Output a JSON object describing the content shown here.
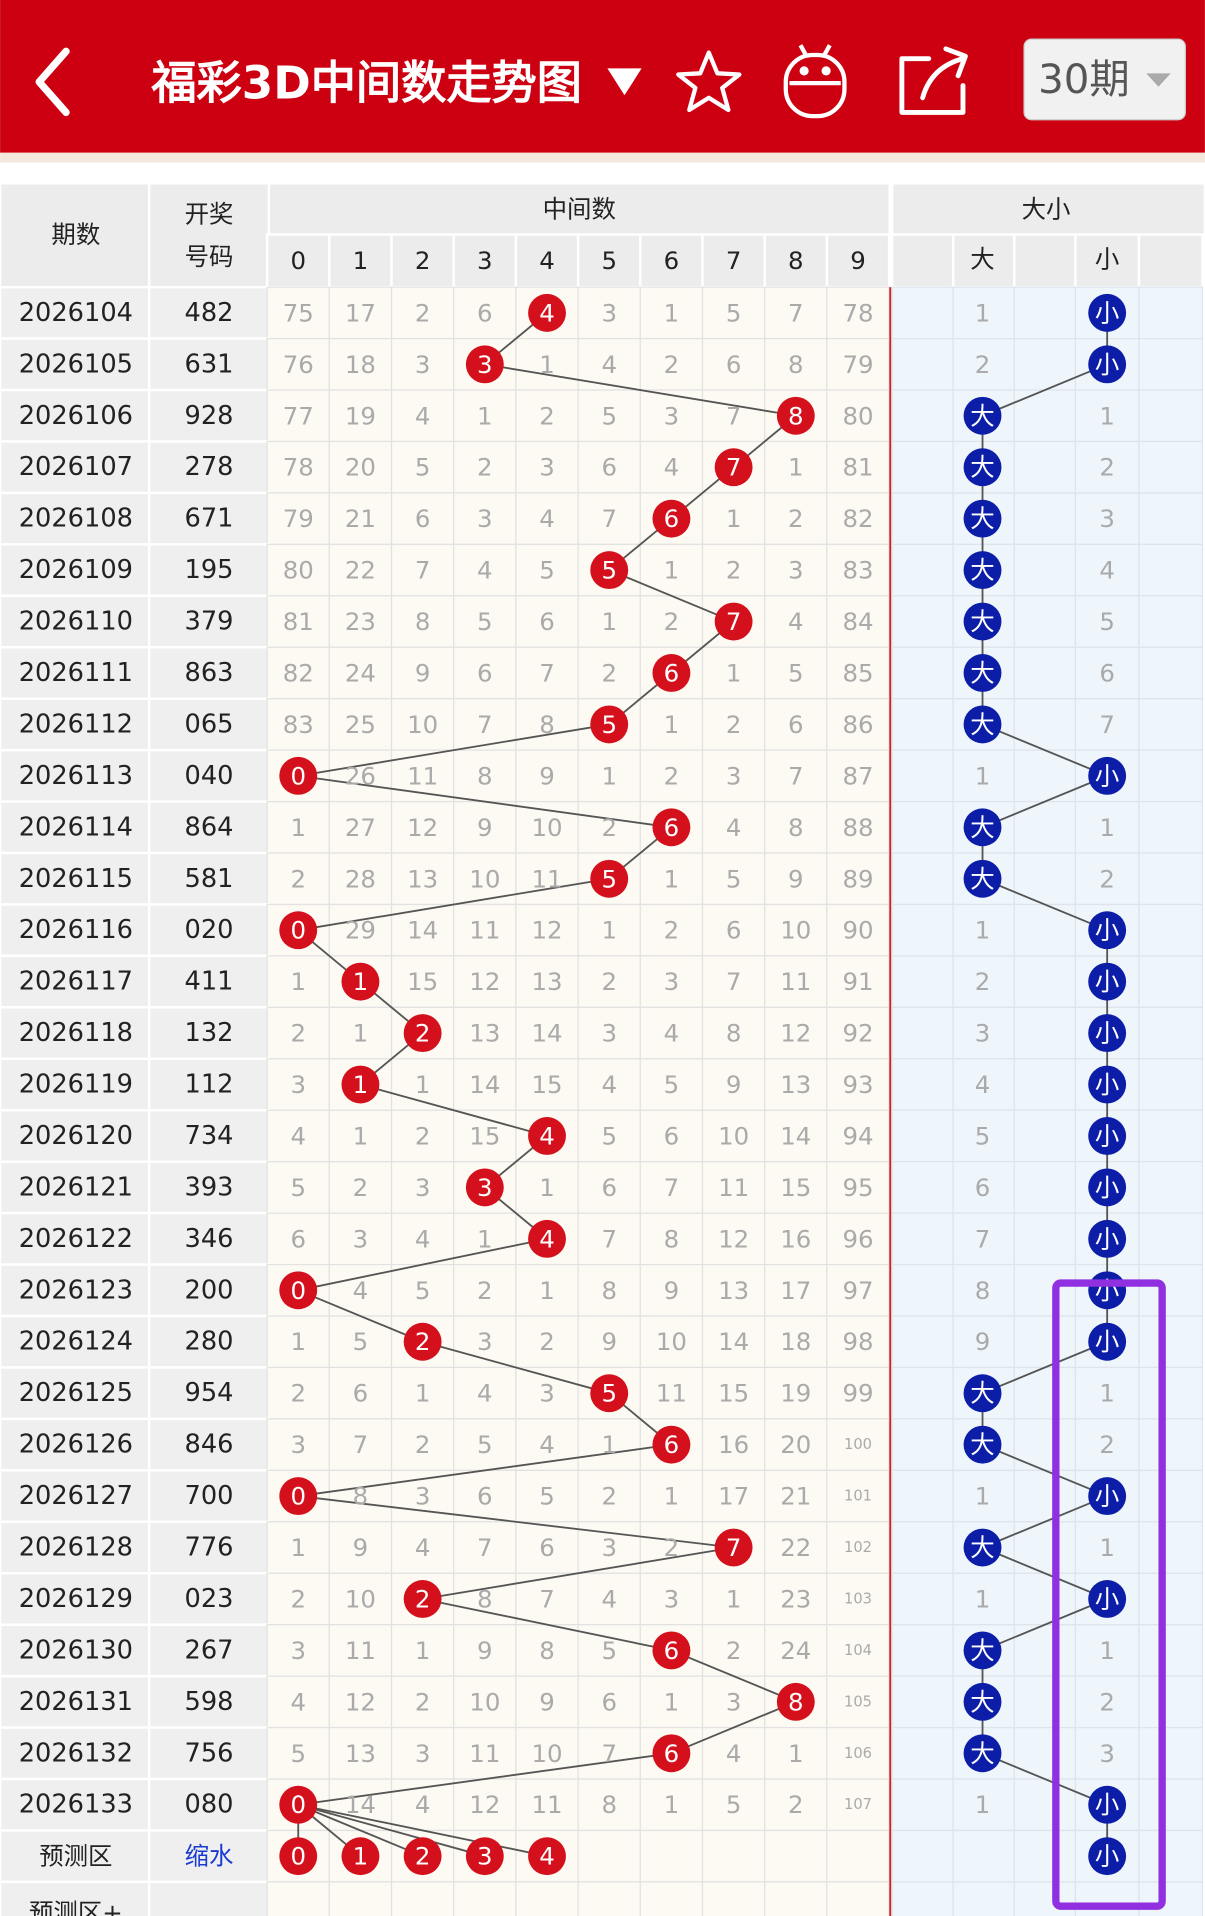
{
  "header": {
    "title": "福彩3D中间数走势图",
    "period_button": "30期"
  },
  "table": {
    "columns": {
      "period": "期数",
      "code": [
        "开奖",
        "号码"
      ],
      "middle": "中间数",
      "middle_digits": [
        0,
        1,
        2,
        3,
        4,
        5,
        6,
        7,
        8,
        9
      ],
      "size": "大小",
      "size_cols": [
        "大",
        "小"
      ]
    },
    "rows": [
      {
        "period": "2026104",
        "code": "482",
        "cells": [
          75,
          17,
          2,
          6,
          "4",
          3,
          1,
          5,
          7,
          78
        ],
        "size": [
          1,
          "小"
        ]
      },
      {
        "period": "2026105",
        "code": "631",
        "cells": [
          76,
          18,
          3,
          "3",
          1,
          4,
          2,
          6,
          8,
          79
        ],
        "size": [
          2,
          "小"
        ]
      },
      {
        "period": "2026106",
        "code": "928",
        "cells": [
          77,
          19,
          4,
          1,
          2,
          5,
          3,
          7,
          "8",
          80
        ],
        "size": [
          "大",
          1
        ]
      },
      {
        "period": "2026107",
        "code": "278",
        "cells": [
          78,
          20,
          5,
          2,
          3,
          6,
          4,
          "7",
          1,
          81
        ],
        "size": [
          "大",
          2
        ]
      },
      {
        "period": "2026108",
        "code": "671",
        "cells": [
          79,
          21,
          6,
          3,
          4,
          7,
          "6",
          1,
          2,
          82
        ],
        "size": [
          "大",
          3
        ]
      },
      {
        "period": "2026109",
        "code": "195",
        "cells": [
          80,
          22,
          7,
          4,
          5,
          "5",
          1,
          2,
          3,
          83
        ],
        "size": [
          "大",
          4
        ]
      },
      {
        "period": "2026110",
        "code": "379",
        "cells": [
          81,
          23,
          8,
          5,
          6,
          1,
          2,
          "7",
          4,
          84
        ],
        "size": [
          "大",
          5
        ]
      },
      {
        "period": "2026111",
        "code": "863",
        "cells": [
          82,
          24,
          9,
          6,
          7,
          2,
          "6",
          1,
          5,
          85
        ],
        "size": [
          "大",
          6
        ]
      },
      {
        "period": "2026112",
        "code": "065",
        "cells": [
          83,
          25,
          10,
          7,
          8,
          "5",
          1,
          2,
          6,
          86
        ],
        "size": [
          "大",
          7
        ]
      },
      {
        "period": "2026113",
        "code": "040",
        "cells": [
          "0",
          26,
          11,
          8,
          9,
          1,
          2,
          3,
          7,
          87
        ],
        "size": [
          1,
          "小"
        ]
      },
      {
        "period": "2026114",
        "code": "864",
        "cells": [
          1,
          27,
          12,
          9,
          10,
          2,
          "6",
          4,
          8,
          88
        ],
        "size": [
          "大",
          1
        ]
      },
      {
        "period": "2026115",
        "code": "581",
        "cells": [
          2,
          28,
          13,
          10,
          11,
          "5",
          1,
          5,
          9,
          89
        ],
        "size": [
          "大",
          2
        ]
      },
      {
        "period": "2026116",
        "code": "020",
        "cells": [
          "0",
          29,
          14,
          11,
          12,
          1,
          2,
          6,
          10,
          90
        ],
        "size": [
          1,
          "小"
        ]
      },
      {
        "period": "2026117",
        "code": "411",
        "cells": [
          1,
          "1",
          15,
          12,
          13,
          2,
          3,
          7,
          11,
          91
        ],
        "size": [
          2,
          "小"
        ]
      },
      {
        "period": "2026118",
        "code": "132",
        "cells": [
          2,
          1,
          "2",
          13,
          14,
          3,
          4,
          8,
          12,
          92
        ],
        "size": [
          3,
          "小"
        ]
      },
      {
        "period": "2026119",
        "code": "112",
        "cells": [
          3,
          "1",
          1,
          14,
          15,
          4,
          5,
          9,
          13,
          93
        ],
        "size": [
          4,
          "小"
        ]
      },
      {
        "period": "2026120",
        "code": "734",
        "cells": [
          4,
          1,
          2,
          15,
          "4",
          5,
          6,
          10,
          14,
          94
        ],
        "size": [
          5,
          "小"
        ]
      },
      {
        "period": "2026121",
        "code": "393",
        "cells": [
          5,
          2,
          3,
          "3",
          1,
          6,
          7,
          11,
          15,
          95
        ],
        "size": [
          6,
          "小"
        ]
      },
      {
        "period": "2026122",
        "code": "346",
        "cells": [
          6,
          3,
          4,
          1,
          "4",
          7,
          8,
          12,
          16,
          96
        ],
        "size": [
          7,
          "小"
        ]
      },
      {
        "period": "2026123",
        "code": "200",
        "cells": [
          "0",
          4,
          5,
          2,
          1,
          8,
          9,
          13,
          17,
          97
        ],
        "size": [
          8,
          "小"
        ]
      },
      {
        "period": "2026124",
        "code": "280",
        "cells": [
          1,
          5,
          "2",
          3,
          2,
          9,
          10,
          14,
          18,
          98
        ],
        "size": [
          9,
          "小"
        ]
      },
      {
        "period": "2026125",
        "code": "954",
        "cells": [
          2,
          6,
          1,
          4,
          3,
          "5",
          11,
          15,
          19,
          99
        ],
        "size": [
          "大",
          1
        ]
      },
      {
        "period": "2026126",
        "code": "846",
        "cells": [
          3,
          7,
          2,
          5,
          4,
          1,
          "6",
          16,
          20,
          100
        ],
        "size": [
          "大",
          2
        ]
      },
      {
        "period": "2026127",
        "code": "700",
        "cells": [
          "0",
          8,
          3,
          6,
          5,
          2,
          1,
          17,
          21,
          101
        ],
        "size": [
          1,
          "小"
        ]
      },
      {
        "period": "2026128",
        "code": "776",
        "cells": [
          1,
          9,
          4,
          7,
          6,
          3,
          2,
          "7",
          22,
          102
        ],
        "size": [
          "大",
          1
        ]
      },
      {
        "period": "2026129",
        "code": "023",
        "cells": [
          2,
          10,
          "2",
          8,
          7,
          4,
          3,
          1,
          23,
          103
        ],
        "size": [
          1,
          "小"
        ]
      },
      {
        "period": "2026130",
        "code": "267",
        "cells": [
          3,
          11,
          1,
          9,
          8,
          5,
          "6",
          2,
          24,
          104
        ],
        "size": [
          "大",
          1
        ]
      },
      {
        "period": "2026131",
        "code": "598",
        "cells": [
          4,
          12,
          2,
          10,
          9,
          6,
          1,
          3,
          "8",
          105
        ],
        "size": [
          "大",
          2
        ]
      },
      {
        "period": "2026132",
        "code": "756",
        "cells": [
          5,
          13,
          3,
          11,
          10,
          7,
          "6",
          4,
          1,
          106
        ],
        "size": [
          "大",
          3
        ]
      },
      {
        "period": "2026133",
        "code": "080",
        "cells": [
          "0",
          14,
          4,
          12,
          11,
          8,
          1,
          5,
          2,
          107
        ],
        "size": [
          1,
          "小"
        ]
      }
    ],
    "prediction": {
      "label": "预测区",
      "code": "缩水",
      "balls": [
        0,
        1,
        2,
        3,
        4
      ],
      "size": "小"
    },
    "next_label": "预测区+"
  }
}
